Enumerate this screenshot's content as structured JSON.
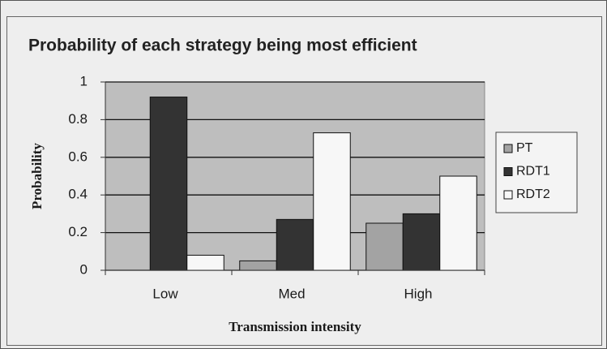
{
  "chart_data": {
    "type": "bar",
    "title": "Probability of each strategy being most efficient",
    "x_label": "Transmission intensity",
    "y_label": "Probability",
    "categories": [
      "Low",
      "Med",
      "High"
    ],
    "series": [
      {
        "name": "PT",
        "color": "#a3a3a3",
        "values": [
          0,
          0.05,
          0.25
        ]
      },
      {
        "name": "RDT1",
        "color": "#333333",
        "values": [
          0.92,
          0.27,
          0.3
        ]
      },
      {
        "name": "RDT2",
        "color": "#f7f7f7",
        "values": [
          0.08,
          0.73,
          0.5
        ]
      }
    ],
    "ylim": [
      0,
      1
    ],
    "yticks": [
      0,
      0.2,
      0.4,
      0.6,
      0.8,
      1
    ],
    "grid": true,
    "legend": "right"
  }
}
